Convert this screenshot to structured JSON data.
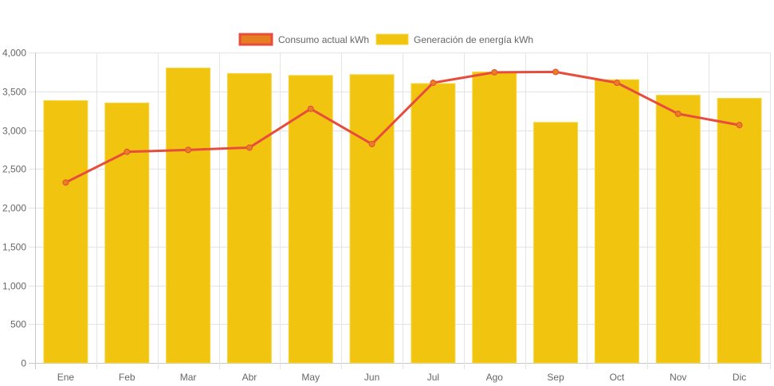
{
  "chart_data": {
    "type": "bar",
    "title": "",
    "xlabel": "",
    "ylabel": "",
    "categories": [
      "Ene",
      "Feb",
      "Mar",
      "Abr",
      "May",
      "Jun",
      "Jul",
      "Ago",
      "Sep",
      "Oct",
      "Nov",
      "Dic"
    ],
    "ylim": [
      0,
      4000
    ],
    "yticks": [
      0,
      500,
      1000,
      1500,
      2000,
      2500,
      3000,
      3500,
      4000
    ],
    "ytick_labels": [
      "0",
      "500",
      "1,000",
      "1,500",
      "2,000",
      "2,500",
      "3,000",
      "3,500",
      "4,000"
    ],
    "grid": true,
    "legend_position": "top-center",
    "series": [
      {
        "name": "Consumo actual kWh",
        "type": "line",
        "color": "#e74c3c",
        "point_color": "#e67e22",
        "values": [
          2325,
          2720,
          2745,
          2775,
          3275,
          2820,
          3610,
          3745,
          3750,
          3610,
          3210,
          3065
        ]
      },
      {
        "name": "Generación de energía kWh",
        "type": "bar",
        "color": "#f1c40f",
        "values": [
          3380,
          3350,
          3800,
          3730,
          3705,
          3715,
          3600,
          3750,
          3100,
          3650,
          3450,
          3410
        ]
      }
    ]
  }
}
